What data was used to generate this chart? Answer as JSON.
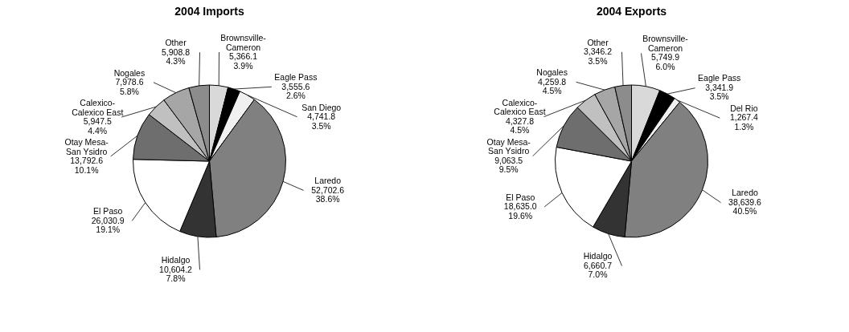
{
  "chart_data": [
    {
      "type": "pie",
      "title": "2004 Imports",
      "categories": [
        "Brownsville-Cameron",
        "Eagle Pass",
        "San Diego",
        "Laredo",
        "Hidalgo",
        "El Paso",
        "Otay Mesa-San Ysidro",
        "Calexico-Calexico East",
        "Nogales",
        "Other"
      ],
      "values": [
        5366.1,
        3555.6,
        4741.8,
        52702.6,
        10604.2,
        26030.9,
        13792.6,
        5947.5,
        7978.6,
        5908.8
      ],
      "value_labels": [
        "5,366.1\n3.9%",
        "3,555.6\n2.6%",
        "4,741.8\n3.5%",
        "52,702.6\n38.6%",
        "10,604.2\n7.8%",
        "26,030.9\n19.1%",
        "13,792.6\n10.1%",
        "5,947.5\n4.4%",
        "7,978.6\n5.8%",
        "5,908.8\n4.3%"
      ],
      "colors": [
        "#d9d9d9",
        "#000000",
        "#f0f0f0",
        "#808080",
        "#333333",
        "#ffffff",
        "#6e6e6e",
        "#c0c0c0",
        "#a6a6a6",
        "#8c8c8c"
      ]
    },
    {
      "type": "pie",
      "title": "2004 Exports",
      "categories": [
        "Brownsville-Cameron",
        "Eagle Pass",
        "Del Rio",
        "Laredo",
        "Hidalgo",
        "El Paso",
        "Otay Mesa-San Ysidro",
        "Calexico-Calexico East",
        "Nogales",
        "Other"
      ],
      "values": [
        5749.9,
        3341.9,
        1267.4,
        38639.6,
        6660.7,
        18635.0,
        9063.5,
        4327.8,
        4259.8,
        3346.2
      ],
      "value_labels": [
        "5,749.9\n6.0%",
        "3,341.9\n3.5%",
        "1,267.4\n1.3%",
        "38,639.6\n40.5%",
        "6,660.7\n7.0%",
        "18,635.0\n19.6%",
        "9,063.5\n9.5%",
        "4,327.8\n4.5%",
        "4,259.8\n4.5%",
        "3,346.2\n3.5%"
      ],
      "colors": [
        "#d9d9d9",
        "#000000",
        "#f0f0f0",
        "#808080",
        "#333333",
        "#ffffff",
        "#6e6e6e",
        "#c0c0c0",
        "#a6a6a6",
        "#8c8c8c"
      ]
    }
  ]
}
